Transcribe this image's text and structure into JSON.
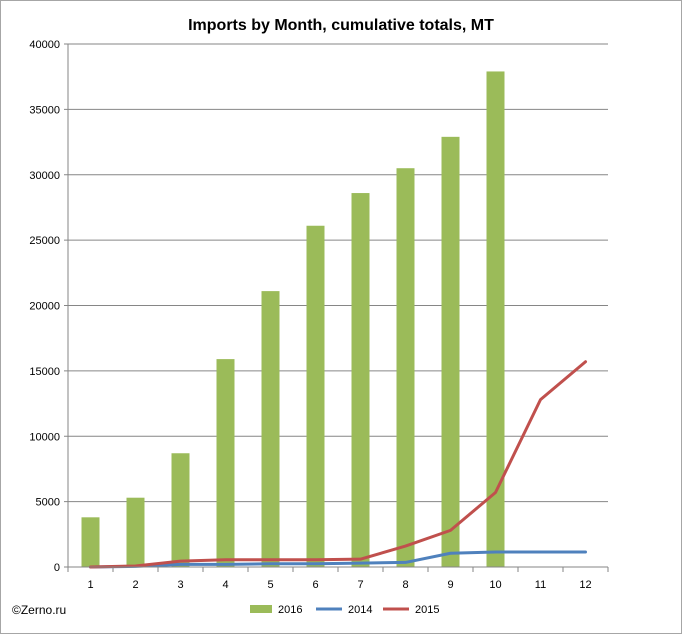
{
  "chart_data": {
    "type": "bar",
    "title": "Imports by Month, cumulative totals, MT",
    "xlabel": "",
    "ylabel": "",
    "categories": [
      "1",
      "2",
      "3",
      "4",
      "5",
      "6",
      "7",
      "8",
      "9",
      "10",
      "11",
      "12"
    ],
    "ylim": [
      0,
      40000
    ],
    "yticks": [
      0,
      5000,
      10000,
      15000,
      20000,
      25000,
      30000,
      35000,
      40000
    ],
    "grid": true,
    "legend_position": "bottom",
    "series": [
      {
        "name": "2016",
        "kind": "bar",
        "color": "#9bbb59",
        "values": [
          3800,
          5300,
          8700,
          15900,
          21100,
          26100,
          28600,
          30500,
          32900,
          37900,
          null,
          null
        ]
      },
      {
        "name": "2014",
        "kind": "line",
        "color": "#4f81bd",
        "values": [
          0,
          50,
          200,
          200,
          250,
          250,
          300,
          350,
          1050,
          1150,
          1150,
          1150
        ]
      },
      {
        "name": "2015",
        "kind": "line",
        "color": "#c0504d",
        "values": [
          0,
          80,
          450,
          550,
          550,
          550,
          600,
          1600,
          2800,
          5700,
          12800,
          15700
        ]
      }
    ]
  },
  "credit": "©Zerno.ru"
}
